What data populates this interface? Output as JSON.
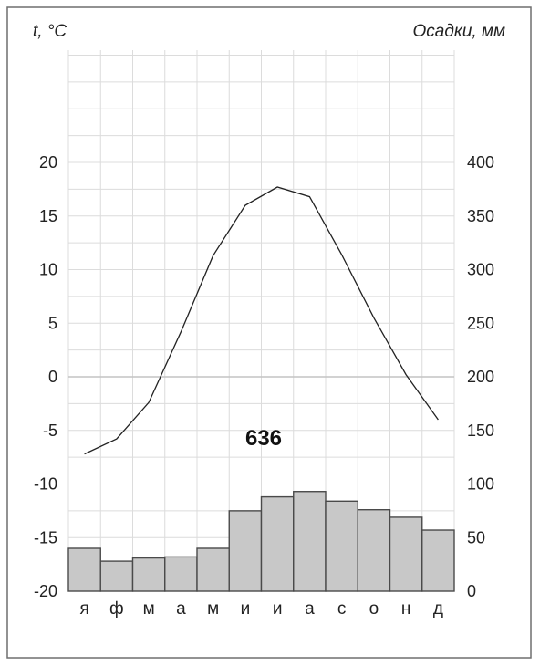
{
  "chart_data": {
    "type": "bar",
    "title": "",
    "left_axis": {
      "label": "t, °C",
      "range": [
        -20,
        20
      ],
      "ticks": [
        "20",
        "15",
        "10",
        "5",
        "0",
        "-5",
        "-10",
        "-15",
        "-20"
      ]
    },
    "right_axis": {
      "label": "Осадки, мм",
      "range": [
        0,
        400
      ],
      "ticks": [
        "400",
        "350",
        "300",
        "250",
        "200",
        "150",
        "100",
        "50",
        "0"
      ]
    },
    "categories": [
      "я",
      "ф",
      "м",
      "а",
      "м",
      "и",
      "и",
      "а",
      "с",
      "о",
      "н",
      "д"
    ],
    "series": [
      {
        "type": "bar",
        "axis": "right",
        "values": [
          40,
          28,
          31,
          32,
          40,
          75,
          88,
          93,
          84,
          76,
          69,
          57
        ]
      },
      {
        "type": "line",
        "axis": "left",
        "values": [
          -7.2,
          -5.8,
          -2.4,
          4.2,
          11.3,
          16.0,
          17.7,
          16.8,
          11.4,
          5.5,
          0.2,
          -4.0
        ]
      }
    ],
    "annotation": "636",
    "grid": true
  }
}
